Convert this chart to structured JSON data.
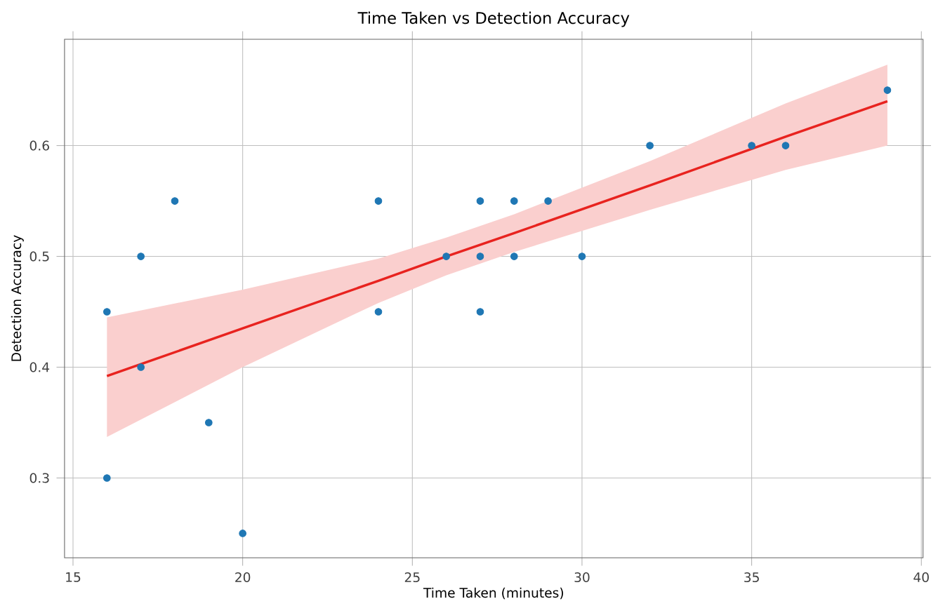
{
  "chart_data": {
    "type": "scatter",
    "title": "Time Taken vs Detection Accuracy",
    "xlabel": "Time Taken (minutes)",
    "ylabel": "Detection Accuracy",
    "xlim": [
      14.75,
      40.05
    ],
    "ylim": [
      0.228,
      0.696
    ],
    "xticks": [
      15,
      20,
      25,
      30,
      35,
      40
    ],
    "yticks": [
      0.3,
      0.4,
      0.5,
      0.6
    ],
    "grid": true,
    "series": [
      {
        "marker": "circle",
        "color": "#1f77b4",
        "x": [
          16,
          16,
          17,
          17,
          18,
          19,
          20,
          24,
          24,
          26,
          27,
          27,
          27,
          28,
          28,
          29,
          30,
          32,
          35,
          36,
          39
        ],
        "values": [
          0.45,
          0.3,
          0.5,
          0.4,
          0.55,
          0.35,
          0.25,
          0.55,
          0.45,
          0.5,
          0.55,
          0.5,
          0.45,
          0.55,
          0.5,
          0.55,
          0.5,
          0.6,
          0.6,
          0.6,
          0.65
        ]
      },
      {
        "type": "line",
        "color": "#e8231f",
        "x": [
          16,
          20,
          24,
          26,
          28,
          32,
          36,
          39
        ],
        "values": [
          0.392,
          0.435,
          0.478,
          0.5,
          0.521,
          0.564,
          0.608,
          0.64
        ],
        "lower": [
          0.337,
          0.4,
          0.458,
          0.483,
          0.504,
          0.542,
          0.578,
          0.6
        ],
        "upper": [
          0.445,
          0.47,
          0.498,
          0.517,
          0.538,
          0.586,
          0.638,
          0.673
        ]
      }
    ]
  }
}
